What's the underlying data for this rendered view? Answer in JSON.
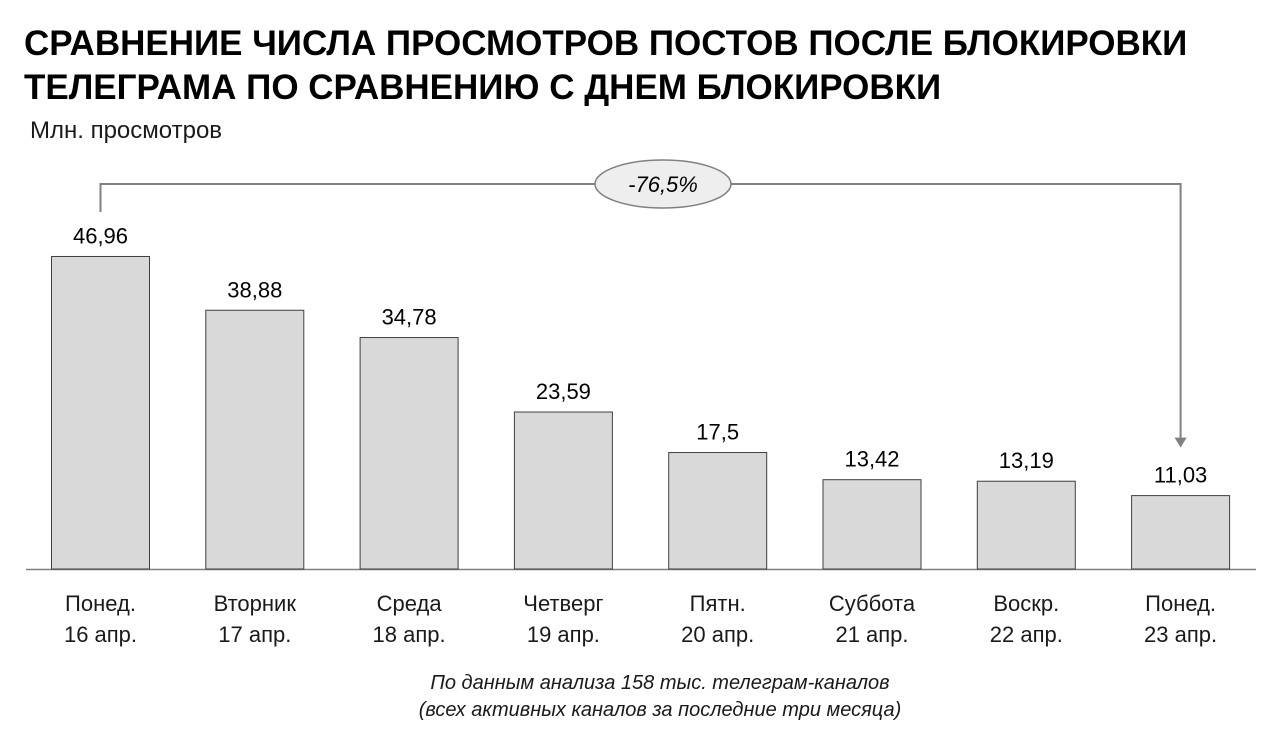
{
  "title_lines": [
    "СРАВНЕНИЕ ЧИСЛА ПРОСМОТРОВ ПОСТОВ ПОСЛЕ БЛОКИРОВКИ",
    "ТЕЛЕГРАМА ПО СРАВНЕНИЮ С ДНЕМ БЛОКИРОВКИ"
  ],
  "source_lines": [
    "По данным анализа 158 тыс. телеграм-каналов",
    "(всех активных каналов за последние три месяца)"
  ],
  "colors": {
    "bar_fill": "#d9d9d9",
    "bar_stroke": "#404040",
    "connector": "#808080",
    "badge_fill": "#eeeeee"
  },
  "chart_data": {
    "type": "bar",
    "ylabel": "Млн. просмотров",
    "xlabel": "",
    "ylim": [
      0,
      50
    ],
    "grid": false,
    "legend": "none",
    "categories": [
      [
        "Понед.",
        "16 апр."
      ],
      [
        "Вторник",
        "17 апр."
      ],
      [
        "Среда",
        "18 апр."
      ],
      [
        "Четверг",
        "19 апр."
      ],
      [
        "Пятн.",
        "20 апр."
      ],
      [
        "Суббота",
        "21 апр."
      ],
      [
        "Воскр.",
        "22 апр."
      ],
      [
        "Понед.",
        "23 апр."
      ]
    ],
    "values": [
      46.96,
      38.88,
      34.78,
      23.59,
      17.5,
      13.42,
      13.19,
      11.03
    ],
    "data_labels": [
      "46,96",
      "38,88",
      "34,78",
      "23,59",
      "17,5",
      "13,42",
      "13,19",
      "11,03"
    ],
    "annotation": {
      "text": "-76,5%",
      "from_index": 0,
      "to_index": 7
    }
  }
}
